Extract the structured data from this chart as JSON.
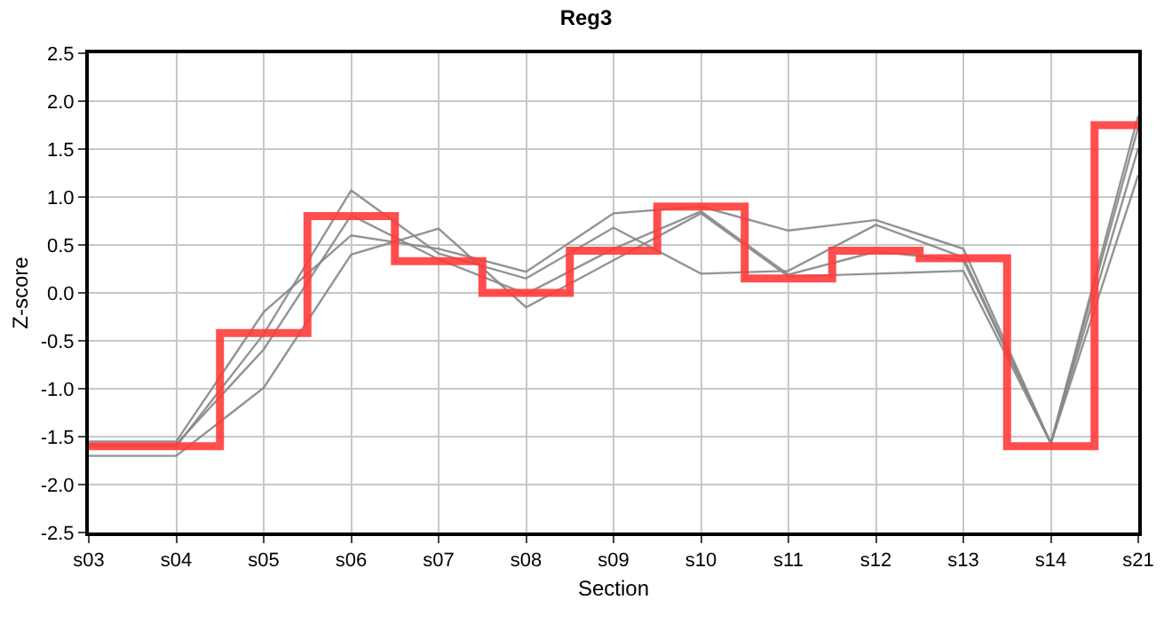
{
  "chart_data": {
    "type": "line",
    "title": "Reg3",
    "xlabel": "Section",
    "ylabel": "Z-score",
    "categories": [
      "s03",
      "s04",
      "s05",
      "s06",
      "s07",
      "s08",
      "s09",
      "s10",
      "s11",
      "s12",
      "s13",
      "s14",
      "s21"
    ],
    "series": [
      {
        "color": "#888888",
        "values": [
          -1.55,
          -1.55,
          -0.2,
          0.6,
          0.46,
          0.22,
          0.83,
          0.9,
          0.65,
          0.76,
          0.46,
          -1.57,
          1.85
        ]
      },
      {
        "color": "#888888",
        "values": [
          -1.6,
          -1.6,
          -0.43,
          1.07,
          0.41,
          0.15,
          0.68,
          0.2,
          0.23,
          0.71,
          0.37,
          -1.57,
          1.73
        ]
      },
      {
        "color": "#888888",
        "values": [
          -1.58,
          -1.58,
          -0.59,
          0.81,
          0.35,
          -0.01,
          0.46,
          0.85,
          0.19,
          0.43,
          0.34,
          -1.57,
          1.51
        ]
      },
      {
        "color": "#888888",
        "values": [
          -1.7,
          -1.7,
          -0.99,
          0.4,
          0.67,
          -0.15,
          0.34,
          0.83,
          0.17,
          0.2,
          0.23,
          -1.57,
          1.23
        ]
      },
      {
        "type": "step",
        "color": "#ff3b3b",
        "values": [
          -1.6,
          -1.6,
          -0.42,
          0.8,
          0.33,
          0.0,
          0.44,
          0.9,
          0.15,
          0.44,
          0.36,
          -1.6,
          1.75
        ]
      }
    ],
    "ylim": [
      -2.5,
      2.5
    ],
    "yticks": [
      {
        "value": -2.5,
        "label": "-2.5"
      },
      {
        "value": -2,
        "label": "-2.0"
      },
      -1.5,
      {
        "value": -1,
        "label": "-1.0"
      },
      -0.5,
      {
        "value": 0,
        "label": "0.0"
      },
      0.5,
      {
        "value": 1,
        "label": "1.0"
      },
      1.5,
      {
        "value": 2,
        "label": "2.0"
      },
      2.5
    ],
    "grid": true,
    "marker": "none",
    "line_style": "solid"
  }
}
